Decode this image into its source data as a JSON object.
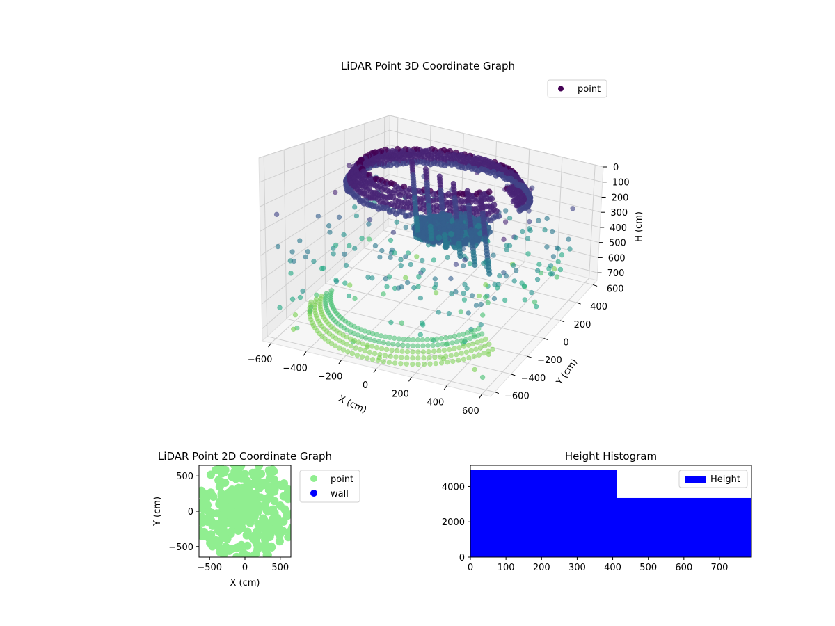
{
  "chart_data": [
    {
      "type": "scatter",
      "projection": "3d",
      "title": "LiDAR Point 3D Coordinate Graph",
      "xlabel": "X (cm)",
      "ylabel": "Y (cm)",
      "zlabel": "H (cm)",
      "x_ticks": [
        "−600",
        "−400",
        "−200",
        "0",
        "200",
        "400",
        "600"
      ],
      "y_ticks": [
        "−600",
        "−400",
        "−200",
        "0",
        "200",
        "400",
        "600"
      ],
      "z_ticks": [
        "0",
        "100",
        "200",
        "300",
        "400",
        "500",
        "600",
        "700"
      ],
      "xlim": [
        -650,
        650
      ],
      "ylim": [
        -650,
        650
      ],
      "zlim": [
        0,
        750
      ],
      "z_inverted": true,
      "colormap": "viridis",
      "legend": {
        "position": "top-right",
        "entries": [
          {
            "label": "point",
            "color": "#440154"
          }
        ]
      },
      "grid": true
    },
    {
      "type": "scatter",
      "title": "LiDAR Point 2D Coordinate Graph",
      "xlabel": "X (cm)",
      "ylabel": "Y (cm)",
      "x_ticks": [
        "−500",
        "0",
        "500"
      ],
      "y_ticks": [
        "500",
        "0",
        "−500"
      ],
      "xlim": [
        -650,
        650
      ],
      "ylim": [
        -650,
        650
      ],
      "series": [
        {
          "name": "point",
          "color": "#90ee90"
        },
        {
          "name": "wall",
          "color": "#0000ff"
        }
      ],
      "legend": {
        "position": "outside-right"
      }
    },
    {
      "type": "bar",
      "subtype": "histogram",
      "title": "Height Histogram",
      "x_ticks": [
        "0",
        "100",
        "200",
        "300",
        "400",
        "500",
        "600",
        "700"
      ],
      "y_ticks": [
        "0",
        "2000",
        "4000"
      ],
      "xlim": [
        0,
        790
      ],
      "ylim": [
        0,
        5200
      ],
      "bins": [
        {
          "start": 0,
          "end": 412,
          "value": 4950
        },
        {
          "start": 412,
          "end": 790,
          "value": 3350
        }
      ],
      "series": [
        {
          "name": "Height",
          "color": "#0000ff"
        }
      ],
      "legend": {
        "position": "top-right"
      }
    }
  ]
}
